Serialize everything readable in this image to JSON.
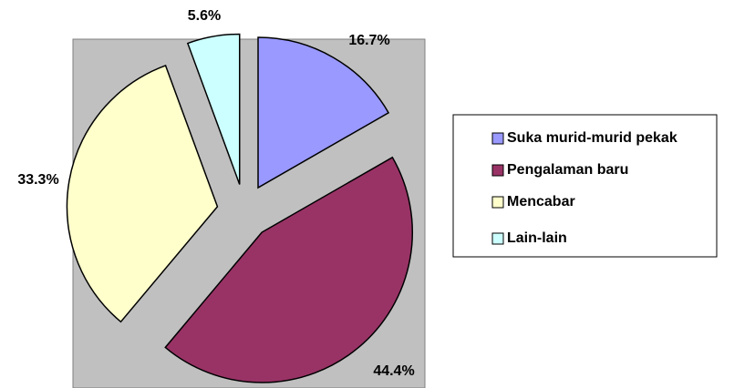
{
  "chart_data": {
    "type": "pie",
    "categories": [
      "Suka murid-murid pekak",
      "Pengalaman baru",
      "Mencabar",
      "Lain-lain"
    ],
    "values": [
      16.7,
      44.4,
      33.3,
      5.6
    ],
    "value_labels": [
      "16.7%",
      "44.4%",
      "33.3%",
      "5.6%"
    ],
    "colors": [
      "#9999ff",
      "#993366",
      "#ffffcc",
      "#ccffff"
    ],
    "legend": "right"
  }
}
